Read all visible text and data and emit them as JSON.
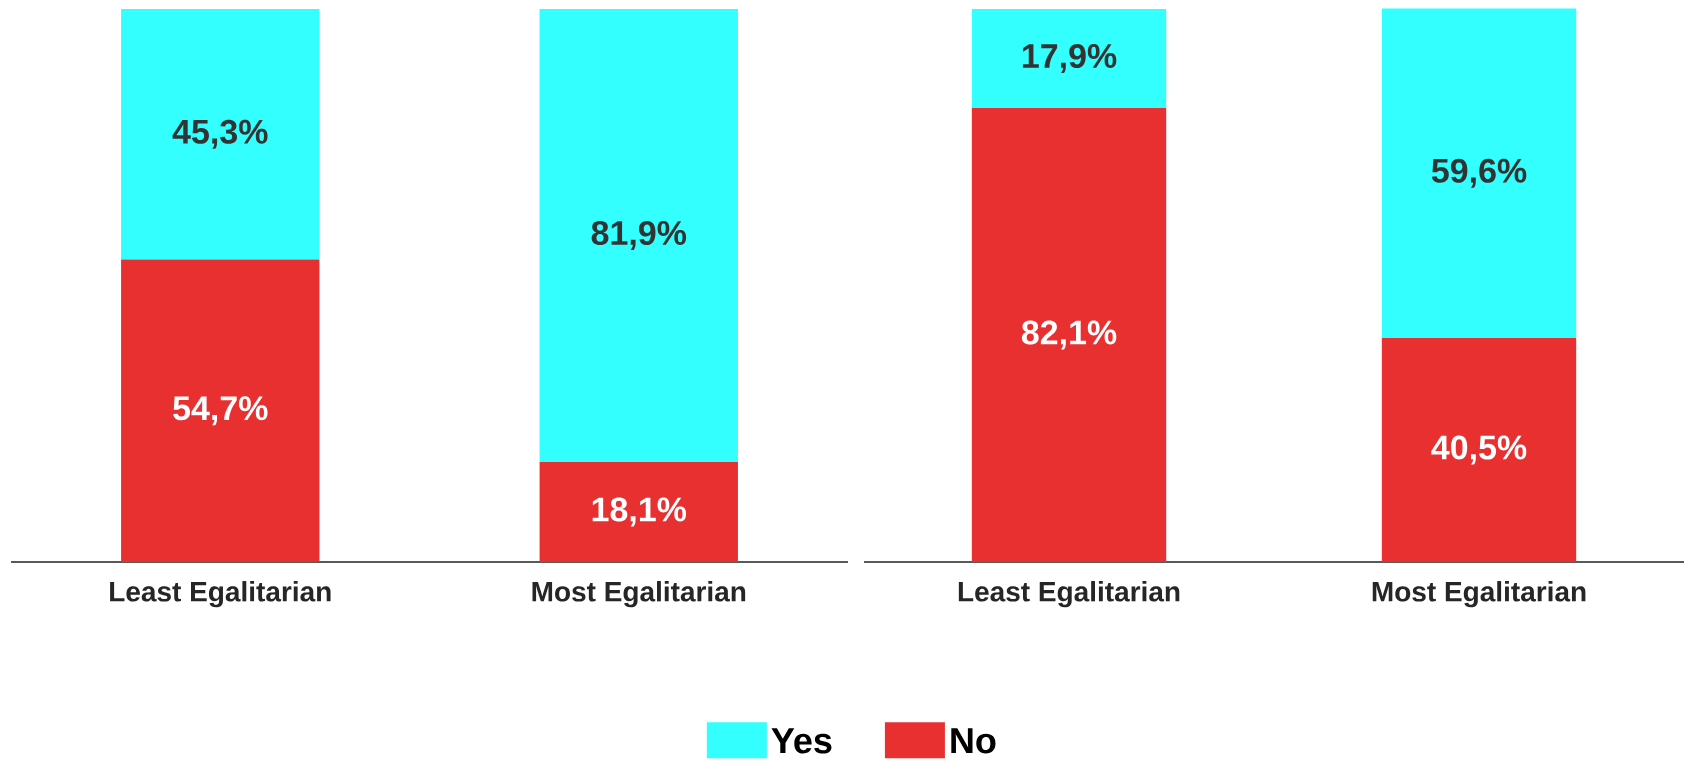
{
  "chart_data": [
    {
      "type": "bar",
      "stacked": true,
      "categories": [
        "Least Egalitarian",
        "Most Egalitarian"
      ],
      "ylim": [
        0,
        100
      ],
      "legend": "bottom",
      "series": [
        {
          "name": "No",
          "color": "#e83030",
          "values": [
            54.7,
            18.1
          ],
          "value_labels": [
            "54,7%",
            "18,1%"
          ]
        },
        {
          "name": "Yes",
          "color": "#33ffff",
          "values": [
            45.3,
            81.9
          ],
          "value_labels": [
            "45,3%",
            "81,9%"
          ]
        }
      ]
    },
    {
      "type": "bar",
      "stacked": true,
      "categories": [
        "Least Egalitarian",
        "Most Egalitarian"
      ],
      "ylim": [
        0,
        100
      ],
      "series": [
        {
          "color": "#e83030",
          "values": [
            82.1,
            40.5
          ],
          "value_labels": [
            "82,1%",
            "40,5%"
          ]
        },
        {
          "color": "#33ffff",
          "values": [
            17.9,
            59.6
          ],
          "value_labels": [
            "17,9%",
            "59,6%"
          ]
        }
      ]
    }
  ]
}
